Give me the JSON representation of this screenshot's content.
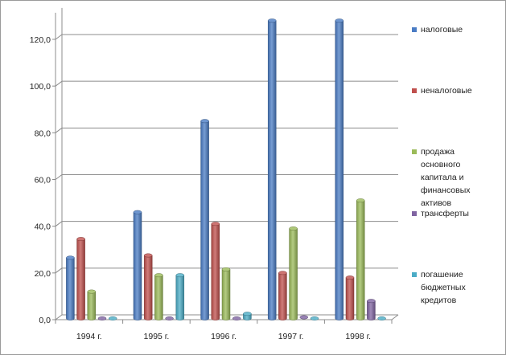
{
  "chart_data": {
    "type": "bar",
    "title": "",
    "xlabel": "",
    "ylabel": "",
    "ylim": [
      0,
      130
    ],
    "yticks": [
      "0,0",
      "20,0",
      "40,0",
      "60,0",
      "80,0",
      "100,0",
      "120,0"
    ],
    "yticks_values": [
      0,
      20,
      40,
      60,
      80,
      100,
      120
    ],
    "grid": true,
    "legend_position": "right",
    "categories": [
      "1994 г.",
      "1995 г.",
      "1996 г.",
      "1997 г.",
      "1998 г."
    ],
    "series": [
      {
        "name": "налоговые",
        "color": "#4a7cc4",
        "values": [
          26,
          45.5,
          84.5,
          127.5,
          127.5
        ]
      },
      {
        "name": "неналоговые",
        "color": "#c0504d",
        "values": [
          34,
          27,
          40.5,
          19.5,
          17.5
        ]
      },
      {
        "name": "продажа основного капитала и финансовых активов",
        "color": "#9bbb59",
        "values": [
          11.5,
          18.5,
          21,
          38.5,
          50.5
        ]
      },
      {
        "name": "трансферты",
        "color": "#8064a2",
        "values": [
          0,
          0,
          0,
          0.5,
          7.5
        ]
      },
      {
        "name": "погашение бюджетных кредитов",
        "color": "#4bacc6",
        "values": [
          0,
          18.5,
          2,
          0,
          0
        ]
      }
    ]
  }
}
